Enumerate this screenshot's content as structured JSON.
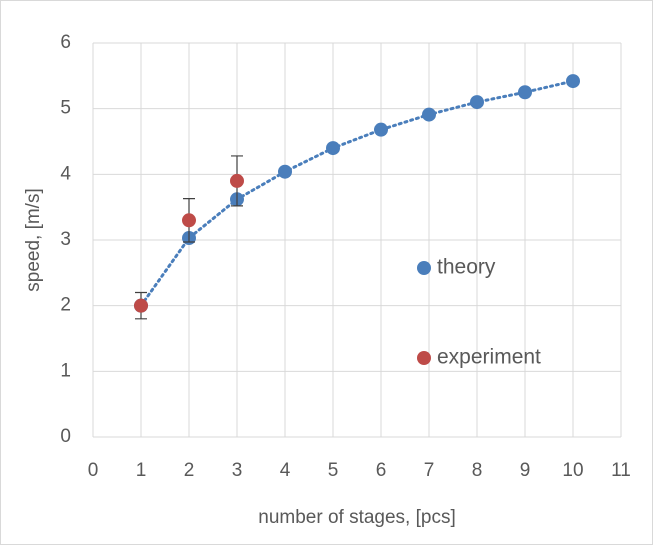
{
  "chart_data": {
    "type": "scatter",
    "x_label": "number of stages, [pcs]",
    "y_label": "speed, [m/s]",
    "xlim": [
      0,
      11
    ],
    "xticks": [
      0,
      1,
      2,
      3,
      4,
      5,
      6,
      7,
      8,
      9,
      10,
      11
    ],
    "ylim": [
      0,
      6
    ],
    "yticks": [
      0,
      1,
      2,
      3,
      4,
      5,
      6
    ],
    "grid": true,
    "series": [
      {
        "name": "theory",
        "color": "#4a7ebb",
        "x": [
          1,
          2,
          3,
          4,
          5,
          6,
          7,
          8,
          9,
          10
        ],
        "values": [
          2.0,
          3.03,
          3.62,
          4.04,
          4.4,
          4.68,
          4.91,
          5.1,
          5.25,
          5.42
        ],
        "trendline": true
      },
      {
        "name": "experiment",
        "color": "#be4b48",
        "x": [
          1,
          2,
          3
        ],
        "values": [
          2.0,
          3.3,
          3.9
        ],
        "errors": [
          0.2,
          0.33,
          0.38
        ]
      }
    ]
  }
}
